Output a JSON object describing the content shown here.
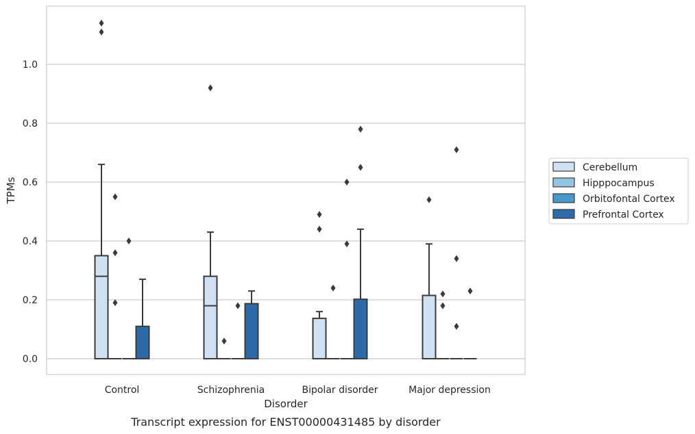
{
  "chart_data": {
    "type": "boxplot",
    "caption": "Transcript expression for ENST00000431485 by disorder",
    "xlabel": "Disorder",
    "ylabel": "TPMs",
    "ylim": [
      -0.055,
      1.2
    ],
    "yticks": [
      0.0,
      0.2,
      0.4,
      0.6,
      0.8,
      1.0
    ],
    "ytick_labels": [
      "0.0",
      "0.2",
      "0.4",
      "0.6",
      "0.8",
      "1.0"
    ],
    "categories": [
      "Control",
      "Schizophrenia",
      "Bipolar disorder",
      "Major depression"
    ],
    "grid": "horizontal",
    "legend_position": "right",
    "series": [
      {
        "name": "Cerebellum",
        "color": "#d0e1f2",
        "boxes": [
          {
            "q1": 0.0,
            "median": 0.28,
            "q3": 0.35,
            "whisker_low": 0.0,
            "whisker_high": 0.66,
            "outliers": [
              1.11,
              1.14
            ]
          },
          {
            "q1": 0.0,
            "median": 0.18,
            "q3": 0.28,
            "whisker_low": 0.0,
            "whisker_high": 0.43,
            "outliers": [
              0.92
            ]
          },
          {
            "q1": 0.0,
            "median": 0.0,
            "q3": 0.137,
            "whisker_low": 0.0,
            "whisker_high": 0.16,
            "outliers": [
              0.44,
              0.49
            ]
          },
          {
            "q1": 0.0,
            "median": 0.0,
            "q3": 0.215,
            "whisker_low": 0.0,
            "whisker_high": 0.39,
            "outliers": [
              0.54
            ]
          }
        ]
      },
      {
        "name": "Hipppocampus",
        "color": "#94c4df",
        "boxes": [
          {
            "q1": 0.0,
            "median": 0.0,
            "q3": 0.0,
            "whisker_low": 0.0,
            "whisker_high": 0.0,
            "outliers": [
              0.19,
              0.36,
              0.55
            ]
          },
          {
            "q1": 0.0,
            "median": 0.0,
            "q3": 0.0,
            "whisker_low": 0.0,
            "whisker_high": 0.0,
            "outliers": [
              0.06
            ]
          },
          {
            "q1": 0.0,
            "median": 0.0,
            "q3": 0.0,
            "whisker_low": 0.0,
            "whisker_high": 0.0,
            "outliers": [
              0.24
            ]
          },
          {
            "q1": 0.0,
            "median": 0.0,
            "q3": 0.0,
            "whisker_low": 0.0,
            "whisker_high": 0.0,
            "outliers": [
              0.18,
              0.22
            ]
          }
        ]
      },
      {
        "name": "Orbitofontal Cortex",
        "color": "#4a98c9",
        "boxes": [
          {
            "q1": 0.0,
            "median": 0.0,
            "q3": 0.0,
            "whisker_low": 0.0,
            "whisker_high": 0.0,
            "outliers": [
              0.4
            ]
          },
          {
            "q1": 0.0,
            "median": 0.0,
            "q3": 0.0,
            "whisker_low": 0.0,
            "whisker_high": 0.0,
            "outliers": [
              0.18
            ]
          },
          {
            "q1": 0.0,
            "median": 0.0,
            "q3": 0.0,
            "whisker_low": 0.0,
            "whisker_high": 0.0,
            "outliers": [
              0.39,
              0.6
            ]
          },
          {
            "q1": 0.0,
            "median": 0.0,
            "q3": 0.0,
            "whisker_low": 0.0,
            "whisker_high": 0.0,
            "outliers": [
              0.11,
              0.34,
              0.71
            ]
          }
        ]
      },
      {
        "name": "Prefrontal Cortex",
        "color": "#2f6aa8",
        "boxes": [
          {
            "q1": 0.0,
            "median": 0.0,
            "q3": 0.11,
            "whisker_low": 0.0,
            "whisker_high": 0.27,
            "outliers": []
          },
          {
            "q1": 0.0,
            "median": 0.0,
            "q3": 0.187,
            "whisker_low": 0.0,
            "whisker_high": 0.23,
            "outliers": []
          },
          {
            "q1": 0.0,
            "median": 0.0,
            "q3": 0.202,
            "whisker_low": 0.0,
            "whisker_high": 0.44,
            "outliers": [
              0.65,
              0.78
            ]
          },
          {
            "q1": 0.0,
            "median": 0.0,
            "q3": 0.0,
            "whisker_low": 0.0,
            "whisker_high": 0.0,
            "outliers": [
              0.23
            ]
          }
        ]
      }
    ]
  }
}
